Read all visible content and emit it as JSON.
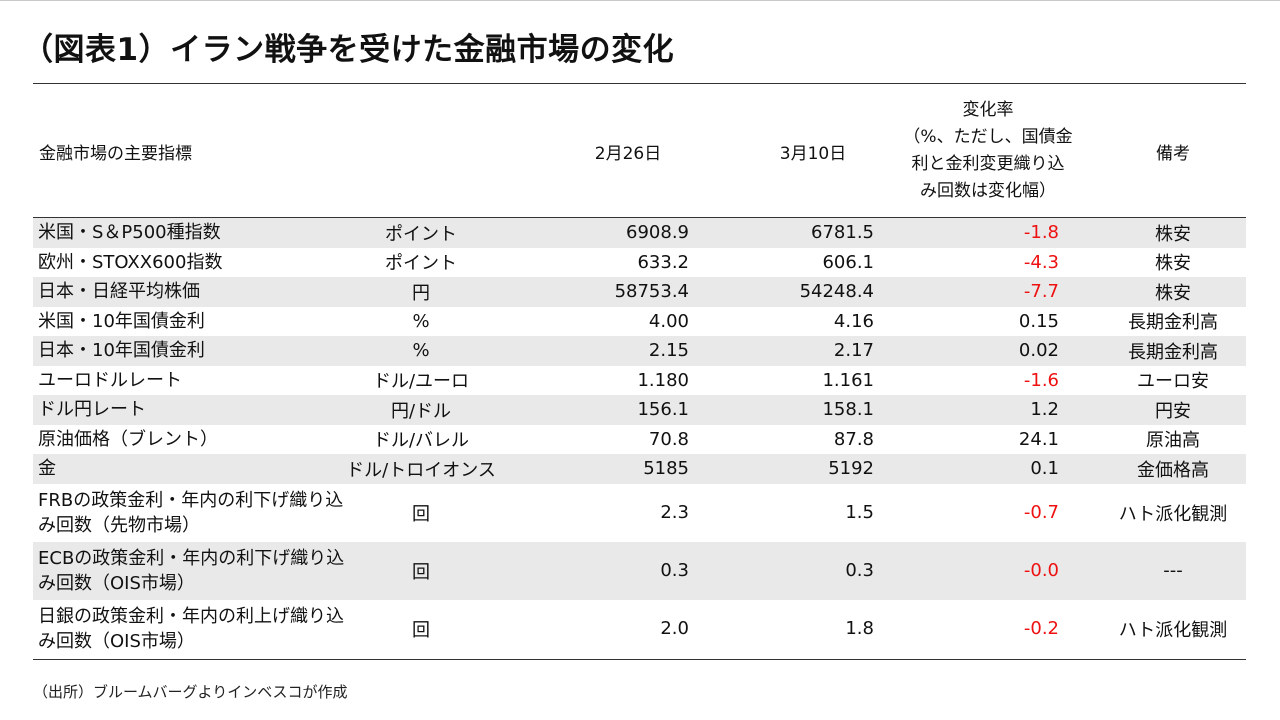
{
  "title": "（図表1）イラン戦争を受けた金融市場の変化",
  "header": {
    "name": "金融市場の主要指標",
    "date1": "2月26日",
    "date2": "3月10日",
    "change_lines": [
      "変化率",
      "（%、ただし、国債金",
      "利と金利変更織り込",
      "み回数は変化幅）"
    ],
    "note": "備考"
  },
  "rows": [
    {
      "name": "米国・S＆P500種指数",
      "unit": "ポイント",
      "d1": "6908.9",
      "d2": "6781.5",
      "chg": "-1.8",
      "neg": true,
      "note": "株安"
    },
    {
      "name": "欧州・STOXX600指数",
      "unit": "ポイント",
      "d1": "633.2",
      "d2": "606.1",
      "chg": "-4.3",
      "neg": true,
      "note": "株安"
    },
    {
      "name": "日本・日経平均株価",
      "unit": "円",
      "d1": "58753.4",
      "d2": "54248.4",
      "chg": "-7.7",
      "neg": true,
      "note": "株安"
    },
    {
      "name": "米国・10年国債金利",
      "unit": "%",
      "d1": "4.00",
      "d2": "4.16",
      "chg": "0.15",
      "neg": false,
      "note": "長期金利高"
    },
    {
      "name": "日本・10年国債金利",
      "unit": "%",
      "d1": "2.15",
      "d2": "2.17",
      "chg": "0.02",
      "neg": false,
      "note": "長期金利高"
    },
    {
      "name": "ユーロドルレート",
      "unit": "ドル/ユーロ",
      "d1": "1.180",
      "d2": "1.161",
      "chg": "-1.6",
      "neg": true,
      "note": "ユーロ安"
    },
    {
      "name": "ドル円レート",
      "unit": "円/ドル",
      "d1": "156.1",
      "d2": "158.1",
      "chg": "1.2",
      "neg": false,
      "note": "円安"
    },
    {
      "name": "原油価格（ブレント）",
      "unit": "ドル/バレル",
      "d1": "70.8",
      "d2": "87.8",
      "chg": "24.1",
      "neg": false,
      "note": "原油高"
    },
    {
      "name": "金",
      "unit": "ドル/トロイオンス",
      "d1": "5185",
      "d2": "5192",
      "chg": "0.1",
      "neg": false,
      "note": "金価格高"
    },
    {
      "name": "FRBの政策金利・年内の利下げ織り込み回数（先物市場）",
      "unit": "回",
      "d1": "2.3",
      "d2": "1.5",
      "chg": "-0.7",
      "neg": true,
      "note": "ハト派化観測",
      "tall": true
    },
    {
      "name": "ECBの政策金利・年内の利下げ織り込み回数（OIS市場）",
      "unit": "回",
      "d1": "0.3",
      "d2": "0.3",
      "chg": "-0.0",
      "neg": true,
      "note": "---",
      "tall": true
    },
    {
      "name": "日銀の政策金利・年内の利上げ織り込み回数（OIS市場）",
      "unit": "回",
      "d1": "2.0",
      "d2": "1.8",
      "chg": "-0.2",
      "neg": true,
      "note": "ハト派化観測",
      "tall": true
    }
  ],
  "source": "（出所）ブルームバーグよりインベスコが作成"
}
